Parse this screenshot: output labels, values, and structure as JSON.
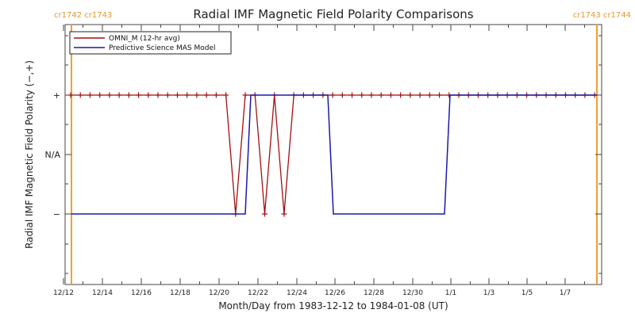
{
  "chart_data": {
    "type": "line",
    "title": "Radial IMF Magnetic Field Polarity Comparisons",
    "xlabel": "Month/Day from 1983-12-12 to 1984-01-08 (UT)",
    "ylabel": "Radial IMF Magnetic Field Polarity (−,+)",
    "x_tick_labels": [
      "12/12",
      "12/14",
      "12/16",
      "12/18",
      "12/20",
      "12/22",
      "12/24",
      "12/26",
      "12/28",
      "12/30",
      "1/1",
      "1/3",
      "1/5",
      "1/7"
    ],
    "y_tick_labels": [
      "+",
      "N/A",
      "−"
    ],
    "carrington_labels": {
      "left": "cr1742 cr1743",
      "right": "cr1743 cr1744"
    },
    "legend": {
      "placement": "top-left",
      "entries": [
        "OMNI_M (12-hr avg)",
        "Predictive Science MAS Model"
      ]
    },
    "colors": {
      "omni": "#a01010",
      "mas": "#1a1aa8",
      "carrington": "#f0a030",
      "axis": "#444444"
    },
    "series": [
      {
        "name": "OMNI_M (12-hr avg)",
        "marker": "plus",
        "days": [
          0.0,
          0.5,
          1.0,
          1.5,
          2.0,
          2.5,
          3.0,
          3.5,
          4.0,
          4.5,
          5.0,
          5.5,
          6.0,
          6.5,
          7.0,
          7.5,
          8.0,
          8.5,
          9.0,
          9.5,
          10.0,
          10.5,
          11.0,
          11.5,
          12.0,
          12.5,
          13.0,
          13.5,
          14.0,
          14.5,
          15.0,
          15.5,
          16.0,
          16.5,
          17.0,
          17.5,
          18.0,
          18.5,
          19.0,
          19.5,
          20.0,
          20.5,
          21.0,
          21.5,
          22.0,
          22.5,
          23.0,
          23.5,
          24.0,
          24.5,
          25.0,
          25.5,
          26.0,
          26.5,
          27.0
        ],
        "values": [
          1,
          1,
          1,
          1,
          1,
          1,
          1,
          1,
          1,
          1,
          1,
          1,
          1,
          1,
          1,
          1,
          1,
          -1,
          1,
          1,
          -1,
          1,
          -1,
          1,
          1,
          1,
          1,
          1,
          1,
          1,
          1,
          1,
          1,
          1,
          1,
          1,
          1,
          1,
          1,
          1,
          1,
          1,
          1,
          1,
          1,
          1,
          1,
          1,
          1,
          1,
          1,
          1,
          1,
          1,
          1
        ]
      },
      {
        "name": "Predictive Science MAS Model",
        "marker": "none",
        "days": [
          0.0,
          1.0,
          2.0,
          3.0,
          4.0,
          5.0,
          6.0,
          7.0,
          8.0,
          9.0,
          9.2,
          9.4,
          9.6,
          10.0,
          11.0,
          12.0,
          13.0,
          14.0,
          15.0,
          15.2,
          15.4,
          15.6,
          16.0,
          17.0,
          18.0,
          19.0,
          20.0,
          21.0,
          22.0,
          23.0,
          24.0,
          25.0,
          26.0,
          27.0
        ],
        "values": [
          -1,
          -1,
          -1,
          -1,
          -1,
          -1,
          -1,
          -1,
          -1,
          -1,
          -1,
          1,
          1,
          1,
          1,
          1,
          1,
          1,
          1,
          -1,
          -1,
          -1,
          -1,
          -1,
          -1,
          -1,
          -1,
          -1,
          1,
          1,
          1,
          1,
          1,
          1
        ]
      }
    ],
    "mas_steps": [
      {
        "from": -1,
        "to": 1,
        "start": 9.4,
        "end": 9.6
      },
      {
        "from": 1,
        "to": -1,
        "start": 14.9,
        "end": 15.2
      },
      {
        "from": -1,
        "to": 1,
        "start": 20.9,
        "end": 21.1
      }
    ],
    "xlim_days": [
      0,
      27.5
    ],
    "ylim": [
      -2,
      2
    ],
    "carrington_days": [
      0.1,
      26.9
    ]
  }
}
